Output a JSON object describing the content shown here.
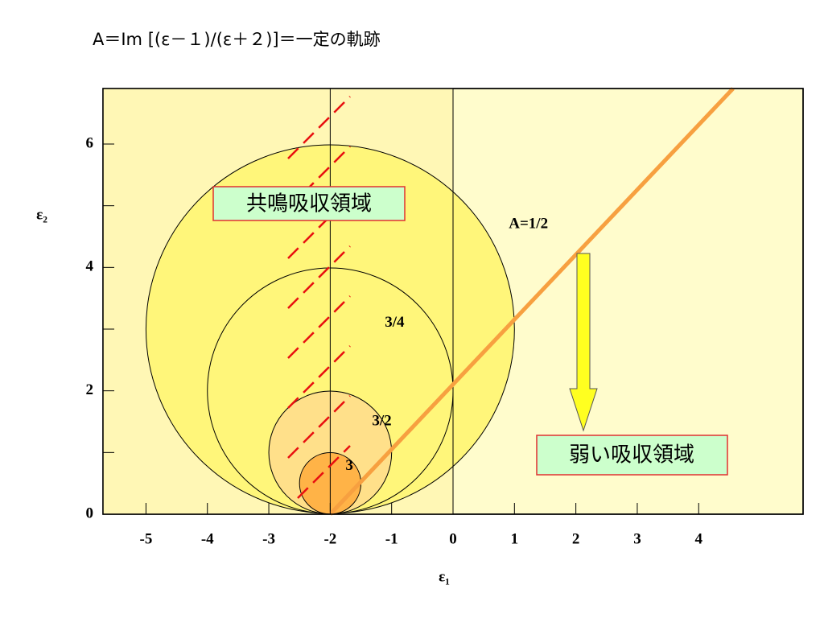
{
  "chart_data": {
    "type": "circles",
    "title": "A＝Im [(ε－１)/(ε＋２)]＝一定の軌跡",
    "xlabel": "ε₁",
    "ylabel": "ε₂",
    "xlim": [
      -5.7,
      5.7
    ],
    "ylim": [
      0,
      6.9
    ],
    "xticks": [
      -5,
      -4,
      -3,
      -2,
      -1,
      0,
      1,
      2,
      3,
      4
    ],
    "yticks": [
      0,
      2,
      4,
      6
    ],
    "y_minor_ticks": [
      1,
      3,
      5
    ],
    "vertical_lines": [
      -2,
      0
    ],
    "circles": [
      {
        "label": "A=1/2",
        "cx": -2,
        "cy": 3,
        "r": 3,
        "color": "#fff67a"
      },
      {
        "label": "3/4",
        "cx": -2,
        "cy": 2,
        "r": 2,
        "color": "#fff67a"
      },
      {
        "label": "3/2",
        "cx": -2,
        "cy": 1,
        "r": 1,
        "color": "#ffe08a"
      },
      {
        "label": "3",
        "cx": -2,
        "cy": 0.5,
        "r": 0.5,
        "color": "#ffb347"
      }
    ],
    "line": {
      "color": "#f7a040",
      "x": [
        -2,
        4.56
      ],
      "y": [
        0,
        6.9
      ]
    },
    "annotations": [
      "共鳴吸収領域",
      "弱い吸収領域"
    ]
  }
}
